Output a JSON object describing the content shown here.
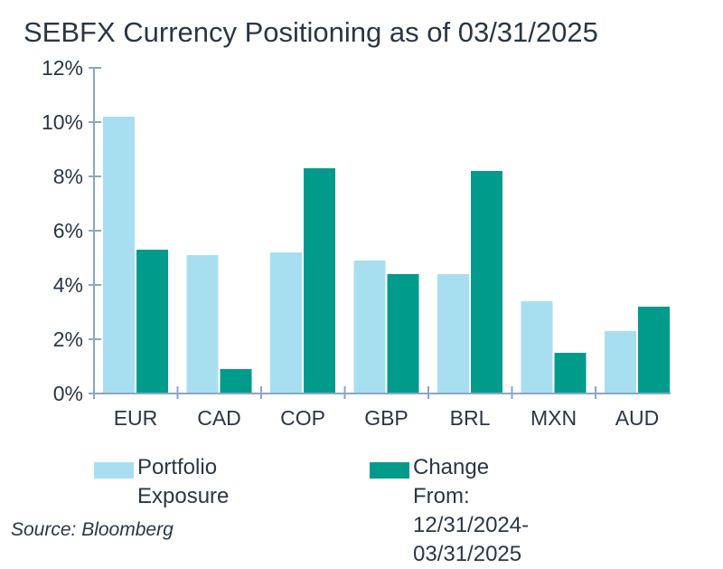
{
  "chart_data": {
    "type": "bar",
    "title": "SEBFX Currency Positioning as of 03/31/2025",
    "categories": [
      "EUR",
      "CAD",
      "COP",
      "GBP",
      "BRL",
      "MXN",
      "AUD"
    ],
    "series": [
      {
        "name": "Portfolio Exposure",
        "color": "#a8dff0",
        "values": [
          10.2,
          5.1,
          5.2,
          4.9,
          4.4,
          3.4,
          2.3
        ]
      },
      {
        "name": "Change From:\n12/31/2024-03/31/2025",
        "color": "#009b8a",
        "values": [
          5.3,
          0.9,
          8.3,
          4.4,
          8.2,
          1.5,
          3.2
        ]
      }
    ],
    "yticks": [
      "0%",
      "2%",
      "4%",
      "6%",
      "8%",
      "10%",
      "12%"
    ],
    "ylim": [
      0,
      12
    ],
    "xlabel": "",
    "ylabel": "",
    "grid": false,
    "legend_position": "bottom",
    "axis_color": "#8aa6c8"
  },
  "source": "Source: Bloomberg"
}
